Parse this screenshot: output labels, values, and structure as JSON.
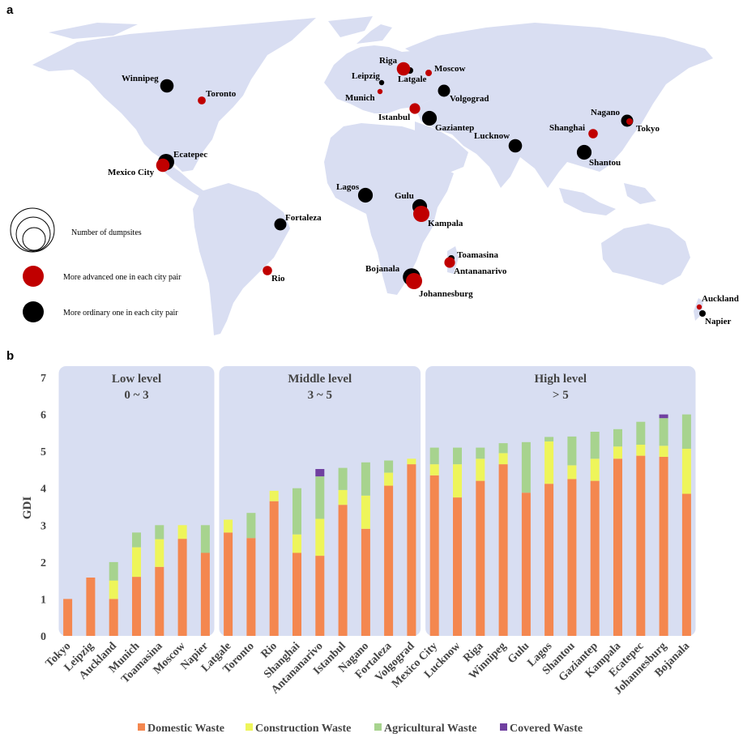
{
  "panel_a": {
    "label": "a",
    "legend": {
      "dumpsites": "Number of dumpsites",
      "advanced": "More advanced one in each city pair",
      "ordinary": "More ordinary one in each city pair"
    },
    "cities": [
      {
        "name": "Winnipeg",
        "type": "ordinary",
        "size": 8
      },
      {
        "name": "Toronto",
        "type": "advanced",
        "size": 4
      },
      {
        "name": "Ecatepec",
        "type": "ordinary",
        "size": 10
      },
      {
        "name": "Mexico City",
        "type": "advanced",
        "size": 8
      },
      {
        "name": "Fortaleza",
        "type": "ordinary",
        "size": 7
      },
      {
        "name": "Rio",
        "type": "advanced",
        "size": 5
      },
      {
        "name": "Riga",
        "type": "advanced",
        "size": 8
      },
      {
        "name": "Latgale",
        "type": "ordinary",
        "size": 3
      },
      {
        "name": "Moscow",
        "type": "advanced",
        "size": 3
      },
      {
        "name": "Leipzig",
        "type": "ordinary",
        "size": 2
      },
      {
        "name": "Munich",
        "type": "advanced",
        "size": 2
      },
      {
        "name": "Volgograd",
        "type": "ordinary",
        "size": 7
      },
      {
        "name": "Istanbul",
        "type": "advanced",
        "size": 6
      },
      {
        "name": "Gaziantep",
        "type": "ordinary",
        "size": 9
      },
      {
        "name": "Lucknow",
        "type": "ordinary",
        "size": 8
      },
      {
        "name": "Nagano",
        "type": "ordinary",
        "size": 7
      },
      {
        "name": "Tokyo",
        "type": "advanced",
        "size": 3
      },
      {
        "name": "Shanghai",
        "type": "advanced",
        "size": 5
      },
      {
        "name": "Shantou",
        "type": "ordinary",
        "size": 9
      },
      {
        "name": "Lagos",
        "type": "ordinary",
        "size": 9
      },
      {
        "name": "Gulu",
        "type": "ordinary",
        "size": 9
      },
      {
        "name": "Kampala",
        "type": "advanced",
        "size": 10
      },
      {
        "name": "Toamasina",
        "type": "ordinary",
        "size": 3
      },
      {
        "name": "Antananarivo",
        "type": "advanced",
        "size": 6
      },
      {
        "name": "Bojanala",
        "type": "ordinary",
        "size": 11
      },
      {
        "name": "Johannesburg",
        "type": "advanced",
        "size": 10
      },
      {
        "name": "Auckland",
        "type": "advanced",
        "size": 2
      },
      {
        "name": "Napier",
        "type": "ordinary",
        "size": 3
      }
    ]
  },
  "chart_data": {
    "type": "bar",
    "stacked": true,
    "label": "b",
    "ylabel": "GDI",
    "xlabel": "",
    "ylim": [
      0,
      7
    ],
    "yticks": [
      "0",
      "1",
      "2",
      "3",
      "4",
      "5",
      "6",
      "7"
    ],
    "categories": [
      "Tokyo",
      "Leipzig",
      "Auckland",
      "Munich",
      "Toamasina",
      "Moscow",
      "Napier",
      "Latgale",
      "Toronto",
      "Rio",
      "Shanghai",
      "Antananarivo",
      "Istanbul",
      "Nagano",
      "Fortaleza",
      "Volgograd",
      "Mexico City",
      "Lucknow",
      "Riga",
      "Winnipeg",
      "Gulu",
      "Lagos",
      "Shantou",
      "Gaziantep",
      "Kampala",
      "Ecatepec",
      "Johannesburg",
      "Bojanala"
    ],
    "series": [
      {
        "name": "Domestic Waste",
        "color": "#f4874f",
        "values": [
          1.0,
          1.58,
          1.0,
          1.6,
          1.87,
          2.63,
          2.25,
          2.8,
          2.65,
          3.65,
          2.25,
          2.17,
          3.55,
          2.9,
          4.07,
          4.65,
          4.35,
          3.75,
          4.2,
          4.65,
          3.88,
          4.12,
          4.25,
          4.2,
          4.8,
          4.88,
          4.85,
          3.85
        ]
      },
      {
        "name": "Construction Waste",
        "color": "#eef55a",
        "values": [
          0,
          0,
          0.5,
          0.8,
          0.75,
          0.37,
          0,
          0.35,
          0,
          0.28,
          0.5,
          1.0,
          0.4,
          0.9,
          0.35,
          0.15,
          0.3,
          0.9,
          0.6,
          0.3,
          0,
          1.15,
          0.37,
          0.6,
          0.33,
          0.3,
          0.3,
          1.22
        ]
      },
      {
        "name": "Agricultural Waste",
        "color": "#a7d38e",
        "values": [
          0,
          0,
          0.5,
          0.4,
          0.38,
          0,
          0.75,
          0,
          0.68,
          0,
          1.25,
          1.15,
          0.6,
          0.9,
          0.33,
          0,
          0.45,
          0.45,
          0.3,
          0.27,
          1.37,
          0.12,
          0.78,
          0.73,
          0.47,
          0.62,
          0.75,
          0.93
        ]
      },
      {
        "name": "Covered Waste",
        "color": "#7040a0",
        "values": [
          0,
          0,
          0,
          0,
          0,
          0,
          0,
          0,
          0,
          0,
          0,
          0.2,
          0,
          0,
          0,
          0,
          0,
          0,
          0,
          0,
          0,
          0,
          0,
          0,
          0,
          0,
          0.1,
          0
        ]
      }
    ],
    "levels": [
      {
        "name": "Low level",
        "range": "0 ~ 3"
      },
      {
        "name": "Middle level",
        "range": "3 ~ 5"
      },
      {
        "name": "High level",
        "range": "> 5"
      }
    ],
    "legend_position": "bottom"
  },
  "colors": {
    "land": "#d9def2",
    "panel_bg": "#d8def2",
    "advanced": "#c00000",
    "ordinary": "#000000",
    "axis_text": "#444444"
  }
}
